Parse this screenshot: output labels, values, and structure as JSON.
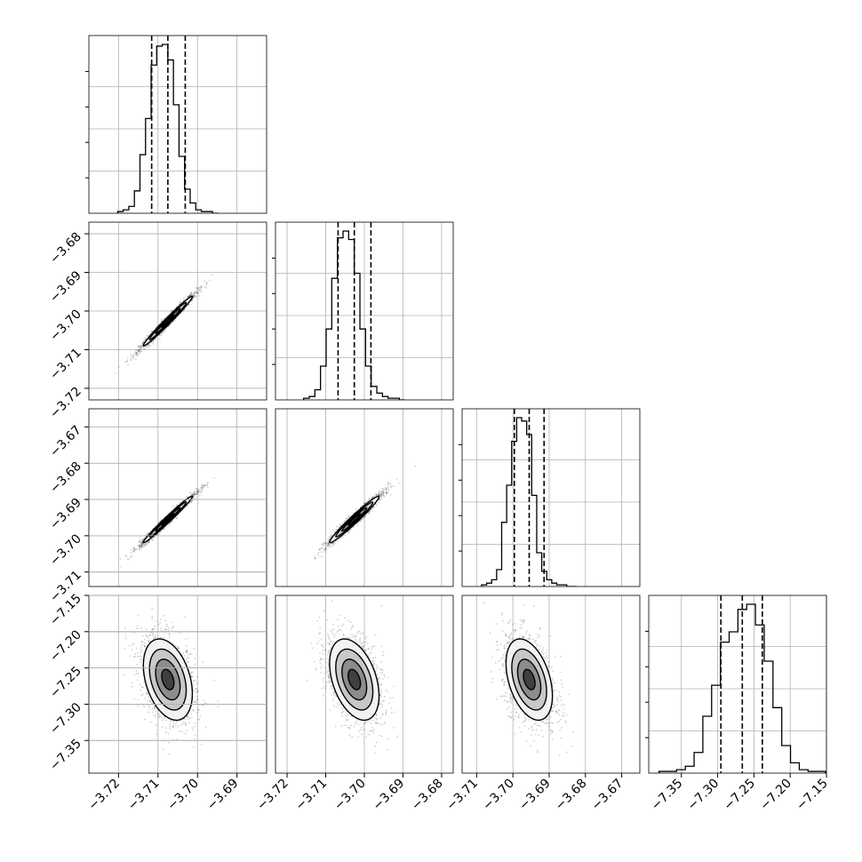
{
  "chart_data": {
    "type": "corner",
    "grid": true,
    "parameters": [
      {
        "xlim": [
          -3.7275,
          -3.6825
        ],
        "ticks": [
          -3.72,
          -3.71,
          -3.7,
          -3.69
        ],
        "tick_labels": [
          "−3.72",
          "−3.71",
          "−3.70",
          "−3.69"
        ],
        "quantiles": [
          -3.7116,
          -3.7075,
          -3.7031
        ],
        "mean": -3.7075,
        "sd": 0.0031
      },
      {
        "xlim": [
          -3.723,
          -3.677
        ],
        "ticks": [
          -3.72,
          -3.71,
          -3.7,
          -3.69,
          -3.68
        ],
        "tick_labels": [
          "−3.72",
          "−3.71",
          "−3.70",
          "−3.69",
          "−3.68"
        ],
        "quantiles": [
          -3.7068,
          -3.7026,
          -3.6983
        ],
        "mean": -3.7026,
        "sd": 0.0032
      },
      {
        "xlim": [
          -3.714,
          -3.665
        ],
        "ticks": [
          -3.71,
          -3.7,
          -3.69,
          -3.68,
          -3.67
        ],
        "tick_labels": [
          "−3.71",
          "−3.70",
          "−3.69",
          "−3.68",
          "−3.67"
        ],
        "quantiles": [
          -3.6996,
          -3.6955,
          -3.6914
        ],
        "mean": -3.6955,
        "sd": 0.0032
      },
      {
        "xlim": [
          -7.395,
          -7.15
        ],
        "ticks": [
          -7.35,
          -7.3,
          -7.25,
          -7.2,
          -7.15
        ],
        "tick_labels": [
          "−7.35",
          "−7.30",
          "−7.25",
          "−7.20",
          "−7.15"
        ],
        "quantiles": [
          -7.2955,
          -7.266,
          -7.2384
        ],
        "mean": -7.266,
        "sd": 0.028
      }
    ],
    "histograms": [
      {
        "param": 0,
        "counts": [
          1,
          2,
          4,
          13,
          34,
          55,
          86,
          97,
          98,
          89,
          63,
          33,
          14,
          6,
          2,
          1,
          1,
          0
        ]
      },
      {
        "param": 1,
        "counts": [
          1,
          2,
          6,
          20,
          42,
          72,
          96,
          100,
          95,
          75,
          42,
          20,
          8,
          4,
          2,
          1,
          1,
          0
        ]
      },
      {
        "param": 2,
        "counts": [
          1,
          2,
          4,
          10,
          38,
          60,
          86,
          100,
          98,
          90,
          54,
          20,
          9,
          4,
          2,
          1,
          1,
          0,
          0
        ]
      },
      {
        "param": 3,
        "counts": [
          1,
          1,
          2,
          4,
          12,
          33,
          51,
          76,
          82,
          95,
          98,
          86,
          65,
          38,
          16,
          6,
          2,
          1,
          1
        ]
      }
    ],
    "pairs": [
      {
        "x": 0,
        "y": 1,
        "correlation": 0.985
      },
      {
        "x": 0,
        "y": 2,
        "correlation": 0.985
      },
      {
        "x": 1,
        "y": 2,
        "correlation": 0.975
      },
      {
        "x": 0,
        "y": 3,
        "correlation": -0.35
      },
      {
        "x": 1,
        "y": 3,
        "correlation": -0.4
      },
      {
        "x": 2,
        "y": 3,
        "correlation": -0.4
      }
    ],
    "contour_levels": [
      "0.5 sigma",
      "1 sigma",
      "1.5 sigma",
      "2 sigma"
    ],
    "colors": {
      "line": "#000000",
      "grid": "#b0b0b0",
      "points": "#000000",
      "background": "#ffffff"
    }
  }
}
